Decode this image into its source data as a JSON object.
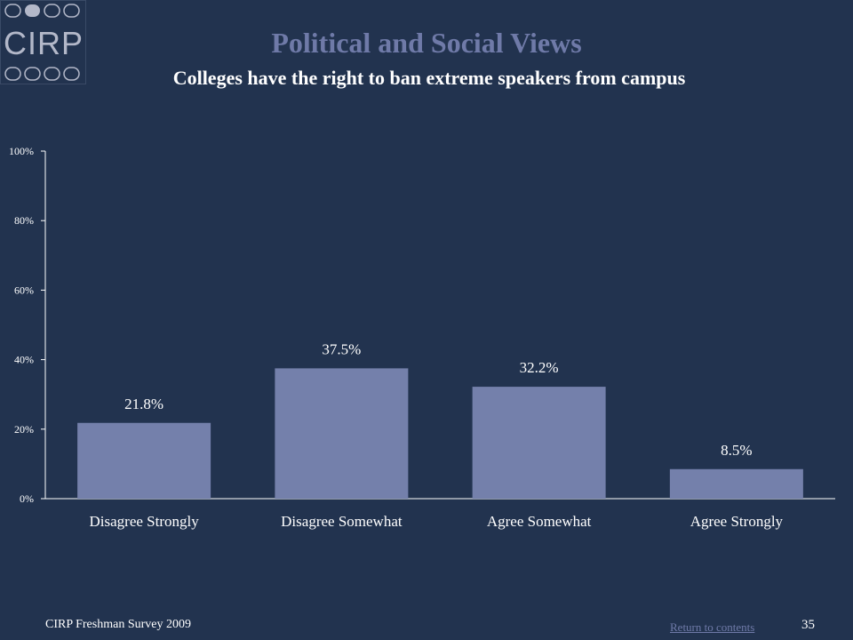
{
  "header": {
    "logo_text": "CIRP",
    "title": "Political and Social Views",
    "subtitle": "Colleges have the right to ban extreme speakers from campus"
  },
  "footer": {
    "source": "CIRP Freshman Survey 2009",
    "return_link": "Return to contents",
    "page_number": "35"
  },
  "colors": {
    "background": "#22334f",
    "bar": "#7480ab",
    "title": "#6f7aa8",
    "text": "#ffffff"
  },
  "chart_data": {
    "type": "bar",
    "title": "Colleges have the right to ban extreme speakers from campus",
    "categories": [
      "Disagree Strongly",
      "Disagree Somewhat",
      "Agree Somewhat",
      "Agree Strongly"
    ],
    "values": [
      21.8,
      37.5,
      32.2,
      8.5
    ],
    "value_labels": [
      "21.8%",
      "37.5%",
      "32.2%",
      "8.5%"
    ],
    "yticks": [
      0,
      20,
      40,
      60,
      80,
      100
    ],
    "ytick_labels": [
      "0%",
      "20%",
      "40%",
      "60%",
      "80%",
      "100%"
    ],
    "ylim": [
      0,
      100
    ],
    "xlabel": "",
    "ylabel": "",
    "grid": false,
    "legend": "none"
  }
}
